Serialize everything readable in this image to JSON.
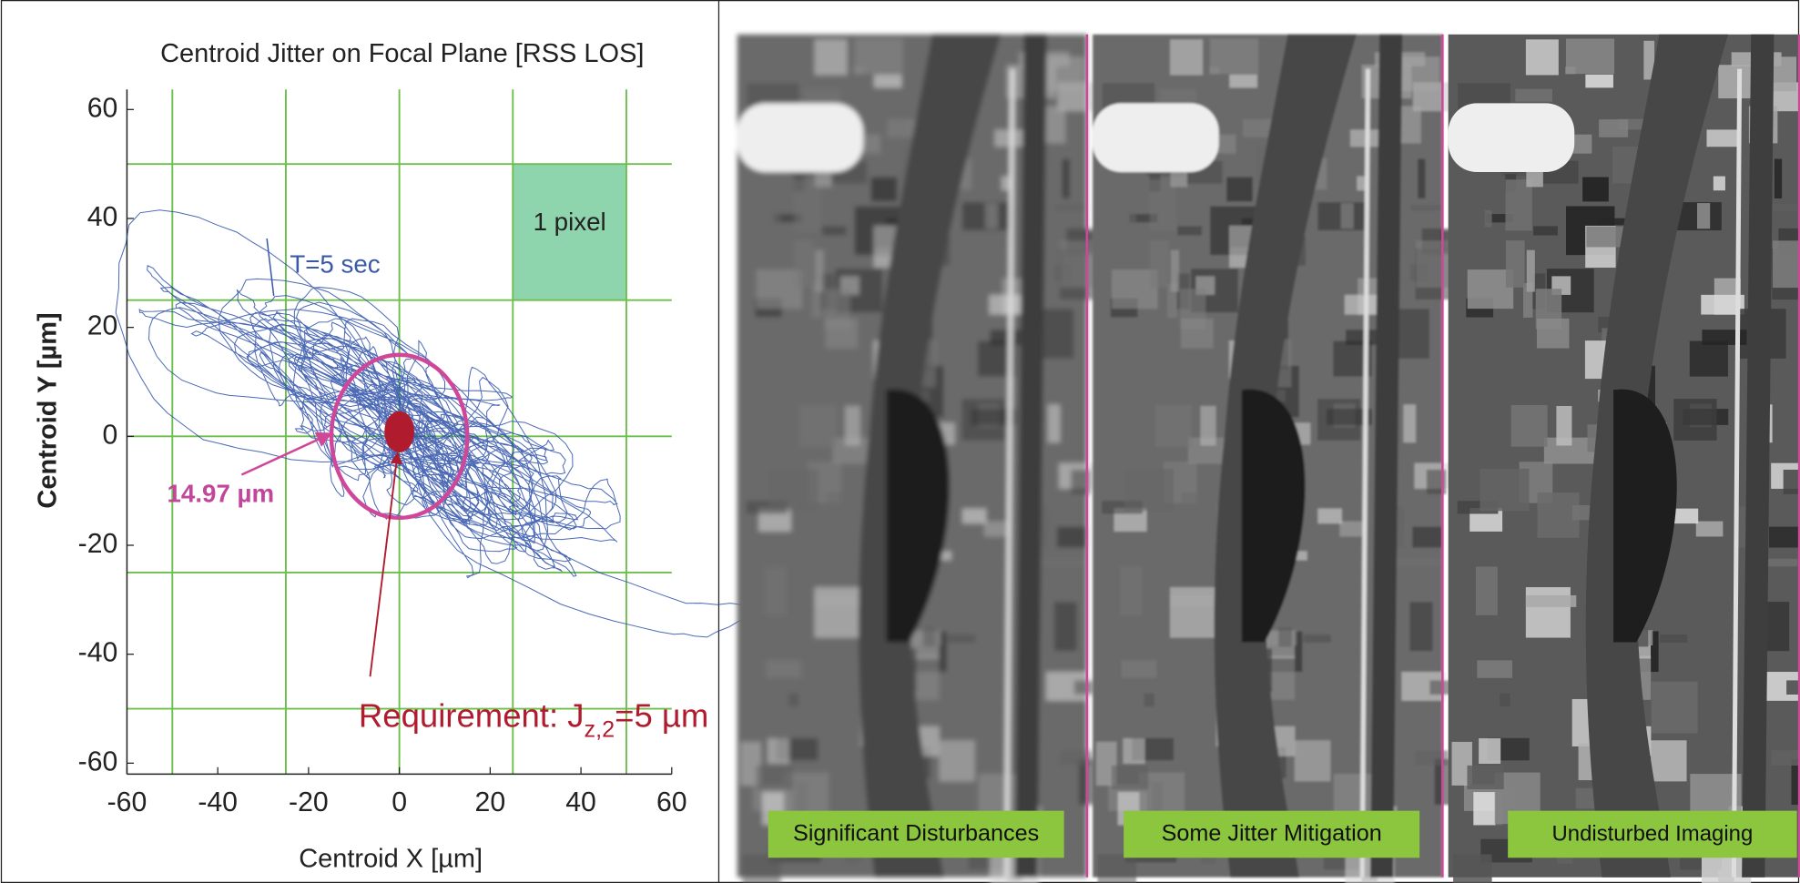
{
  "chart_data": {
    "type": "jitter",
    "title": "Centroid Jitter on Focal Plane [RSS LOS]",
    "xlabel": "Centroid X [µm]",
    "ylabel": "Centroid Y [µm]",
    "xlim": [
      -60,
      60
    ],
    "ylim": [
      -62,
      62
    ],
    "xticks": [
      -60,
      -40,
      -20,
      0,
      20,
      40,
      60
    ],
    "yticks": [
      -60,
      -40,
      -20,
      0,
      20,
      40,
      60
    ],
    "grid_lines": [
      -50,
      -25,
      0,
      25,
      50
    ],
    "grid_color": "#6cbf4a",
    "trace_color": "#2b4fa8",
    "trace_label": "T=5 sec",
    "pixel_label": "1 pixel",
    "jitter_radius": 14.97,
    "jitter_radius_label": "14.97 µm",
    "requirement_text": "Requirement: J",
    "requirement_subscript": "z,2",
    "requirement_suffix": "=5 µm"
  },
  "images": [
    {
      "label": "Significant Disturbances"
    },
    {
      "label": "Some Jitter Mitigation"
    },
    {
      "label": "Undisturbed Imaging"
    }
  ]
}
